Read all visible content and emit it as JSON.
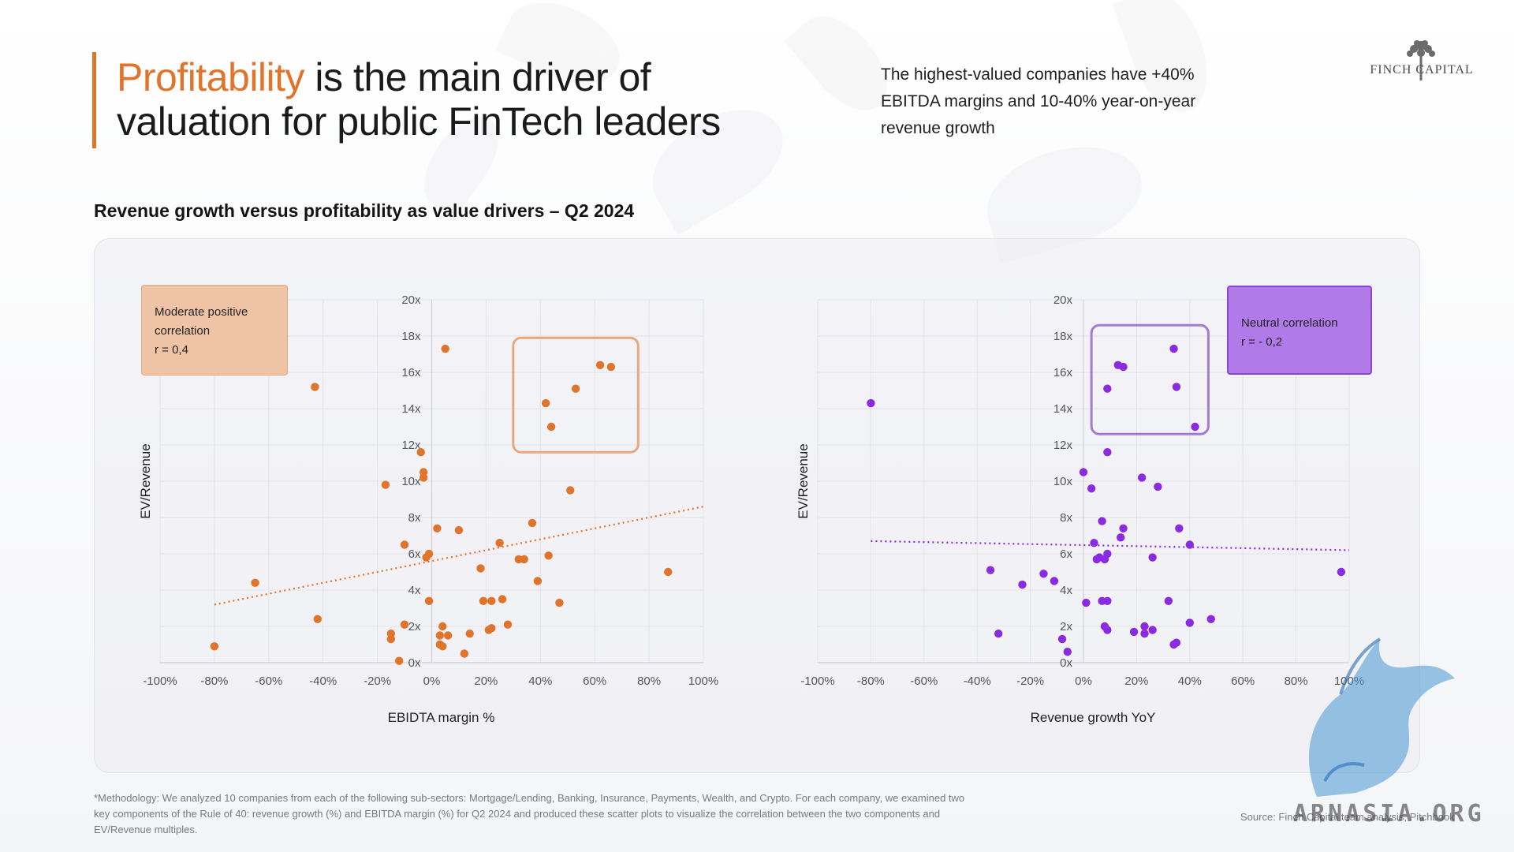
{
  "header": {
    "headline_highlight": "Profitability",
    "headline_rest_line1": " is the main driver of",
    "headline_line2": "valuation for public FinTech leaders",
    "summary": "The highest-valued companies have +40% EBITDA margins and 10-40% year-on-year revenue growth",
    "logo_text": "FINCH CAPITAL",
    "accent_color": "#e0742b"
  },
  "chart_title": "Revenue growth versus profitability as value drivers – Q2 2024",
  "callouts": {
    "left": {
      "line1": "Moderate positive",
      "line2": "correlation",
      "line3": "r = 0,4"
    },
    "right": {
      "line1": "Neutral correlation",
      "line2": "r = - 0,2"
    }
  },
  "chart_data": [
    {
      "type": "scatter",
      "title": "",
      "xlabel": "EBIDTA margin %",
      "ylabel": "EV/Revenue",
      "xlim": [
        -100,
        100
      ],
      "ylim": [
        0,
        20
      ],
      "x_ticks": [
        "-100%",
        "-80%",
        "-60%",
        "-40%",
        "-20%",
        "0%",
        "20%",
        "40%",
        "60%",
        "80%",
        "100%"
      ],
      "y_ticks": [
        "0x",
        "2x",
        "4x",
        "6x",
        "8x",
        "10x",
        "12x",
        "14x",
        "16x",
        "18x",
        "20x"
      ],
      "color": "#e0742b",
      "grid": true,
      "points": [
        [
          -80,
          0.9
        ],
        [
          -65,
          4.4
        ],
        [
          -43,
          15.2
        ],
        [
          -42,
          2.4
        ],
        [
          -17,
          9.8
        ],
        [
          -15,
          1.6
        ],
        [
          -15,
          1.3
        ],
        [
          -12,
          0.1
        ],
        [
          -10,
          6.5
        ],
        [
          -10,
          2.1
        ],
        [
          -4,
          11.6
        ],
        [
          -3,
          10.2
        ],
        [
          -3,
          10.5
        ],
        [
          -2,
          5.8
        ],
        [
          -1,
          6.0
        ],
        [
          -1,
          3.4
        ],
        [
          2,
          7.4
        ],
        [
          3,
          1.5
        ],
        [
          3,
          1.0
        ],
        [
          4,
          2.0
        ],
        [
          4,
          0.9
        ],
        [
          5,
          17.3
        ],
        [
          6,
          1.5
        ],
        [
          10,
          7.3
        ],
        [
          12,
          0.5
        ],
        [
          14,
          1.6
        ],
        [
          18,
          5.2
        ],
        [
          19,
          3.4
        ],
        [
          21,
          1.8
        ],
        [
          22,
          3.4
        ],
        [
          22,
          1.9
        ],
        [
          25,
          6.6
        ],
        [
          26,
          3.5
        ],
        [
          28,
          2.1
        ],
        [
          32,
          5.7
        ],
        [
          34,
          5.7
        ],
        [
          37,
          7.7
        ],
        [
          39,
          4.5
        ],
        [
          42,
          14.3
        ],
        [
          43,
          5.9
        ],
        [
          44,
          13.0
        ],
        [
          47,
          3.3
        ],
        [
          51,
          9.5
        ],
        [
          53,
          15.1
        ],
        [
          62,
          16.4
        ],
        [
          66,
          16.3
        ],
        [
          87,
          5.0
        ]
      ],
      "trendline": {
        "x": [
          -80,
          100
        ],
        "y": [
          3.2,
          8.6
        ]
      },
      "highlight_box": {
        "x": [
          30,
          76
        ],
        "y": [
          11.6,
          17.9
        ]
      }
    },
    {
      "type": "scatter",
      "title": "",
      "xlabel": "Revenue growth YoY",
      "ylabel": "EV/Revenue",
      "xlim": [
        -100,
        100
      ],
      "ylim": [
        0,
        20
      ],
      "x_ticks": [
        "-100%",
        "-80%",
        "-60%",
        "-40%",
        "-20%",
        "0%",
        "20%",
        "40%",
        "60%",
        "80%",
        "100%"
      ],
      "y_ticks": [
        "0x",
        "2x",
        "4x",
        "6x",
        "8x",
        "10x",
        "12x",
        "14x",
        "16x",
        "18x",
        "20x"
      ],
      "color": "#8a2be2",
      "grid": true,
      "points": [
        [
          -80,
          14.3
        ],
        [
          -35,
          5.1
        ],
        [
          -32,
          1.6
        ],
        [
          -23,
          4.3
        ],
        [
          -15,
          4.9
        ],
        [
          -11,
          4.5
        ],
        [
          -8,
          1.3
        ],
        [
          -6,
          0.6
        ],
        [
          0,
          10.5
        ],
        [
          1,
          3.3
        ],
        [
          3,
          9.6
        ],
        [
          4,
          6.6
        ],
        [
          5,
          5.7
        ],
        [
          6,
          5.8
        ],
        [
          7,
          3.4
        ],
        [
          7,
          7.8
        ],
        [
          8,
          2.0
        ],
        [
          8,
          5.7
        ],
        [
          9,
          1.8
        ],
        [
          9,
          3.4
        ],
        [
          9,
          6.0
        ],
        [
          9,
          11.6
        ],
        [
          9,
          15.1
        ],
        [
          13,
          16.4
        ],
        [
          14,
          6.9
        ],
        [
          15,
          7.4
        ],
        [
          15,
          16.3
        ],
        [
          19,
          1.7
        ],
        [
          22,
          10.2
        ],
        [
          23,
          1.6
        ],
        [
          23,
          2.0
        ],
        [
          26,
          1.8
        ],
        [
          26,
          5.8
        ],
        [
          28,
          9.7
        ],
        [
          32,
          3.4
        ],
        [
          34,
          1.0
        ],
        [
          34,
          17.3
        ],
        [
          35,
          1.1
        ],
        [
          35,
          15.2
        ],
        [
          36,
          7.4
        ],
        [
          40,
          6.5
        ],
        [
          40,
          2.2
        ],
        [
          42,
          13.0
        ],
        [
          48,
          2.4
        ],
        [
          97,
          5.0
        ]
      ],
      "trendline": {
        "x": [
          -80,
          100
        ],
        "y": [
          6.7,
          6.2
        ]
      },
      "highlight_box": {
        "x": [
          3,
          47
        ],
        "y": [
          12.6,
          18.6
        ]
      }
    }
  ],
  "footnote": "*Methodology: We analyzed 10 companies from each of the following sub-sectors: Mortgage/Lending, Banking, Insurance, Payments, Wealth, and Crypto. For each company, we examined two key components of the Rule of 40: revenue growth (%) and EBITDA margin (%) for Q2 2024 and produced these scatter plots to visualize the correlation between the two components and EV/Revenue multiples.",
  "source": "Source: Finch Capital team analysis, Pitchbook",
  "watermark": "ARNASIA.ORG"
}
